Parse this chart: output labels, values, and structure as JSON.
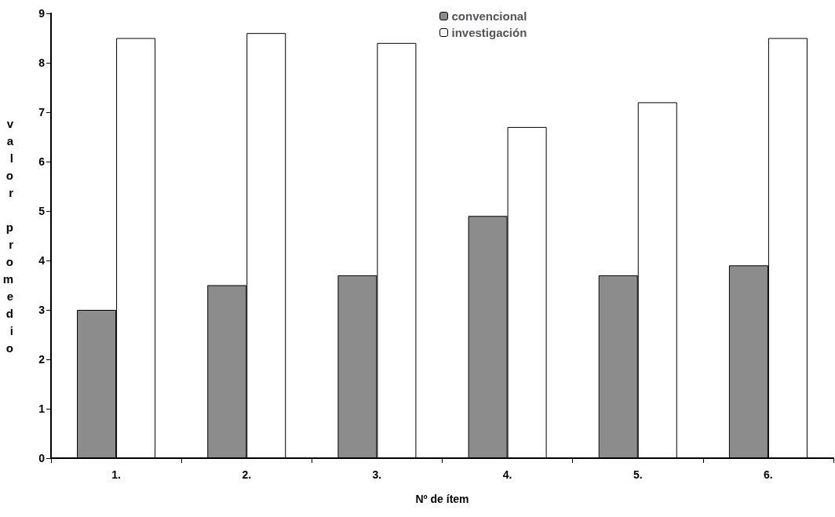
{
  "chart_data": {
    "type": "bar",
    "xlabel": "Nº de ítem",
    "ylabel": "valor promedio",
    "categories": [
      "1.",
      "2.",
      "3.",
      "4.",
      "5.",
      "6."
    ],
    "series": [
      {
        "name": "convencional",
        "color": "#8c8c8c",
        "values": [
          3.0,
          3.5,
          3.7,
          4.9,
          3.7,
          3.9
        ]
      },
      {
        "name": "investigación",
        "color": "#ffffff",
        "values": [
          8.5,
          8.6,
          8.4,
          6.7,
          7.2,
          8.5
        ]
      }
    ],
    "ylim": [
      0,
      9
    ],
    "yticks": [
      0,
      1,
      2,
      3,
      4,
      5,
      6,
      7,
      8,
      9
    ],
    "grid": false,
    "legend": "top"
  }
}
